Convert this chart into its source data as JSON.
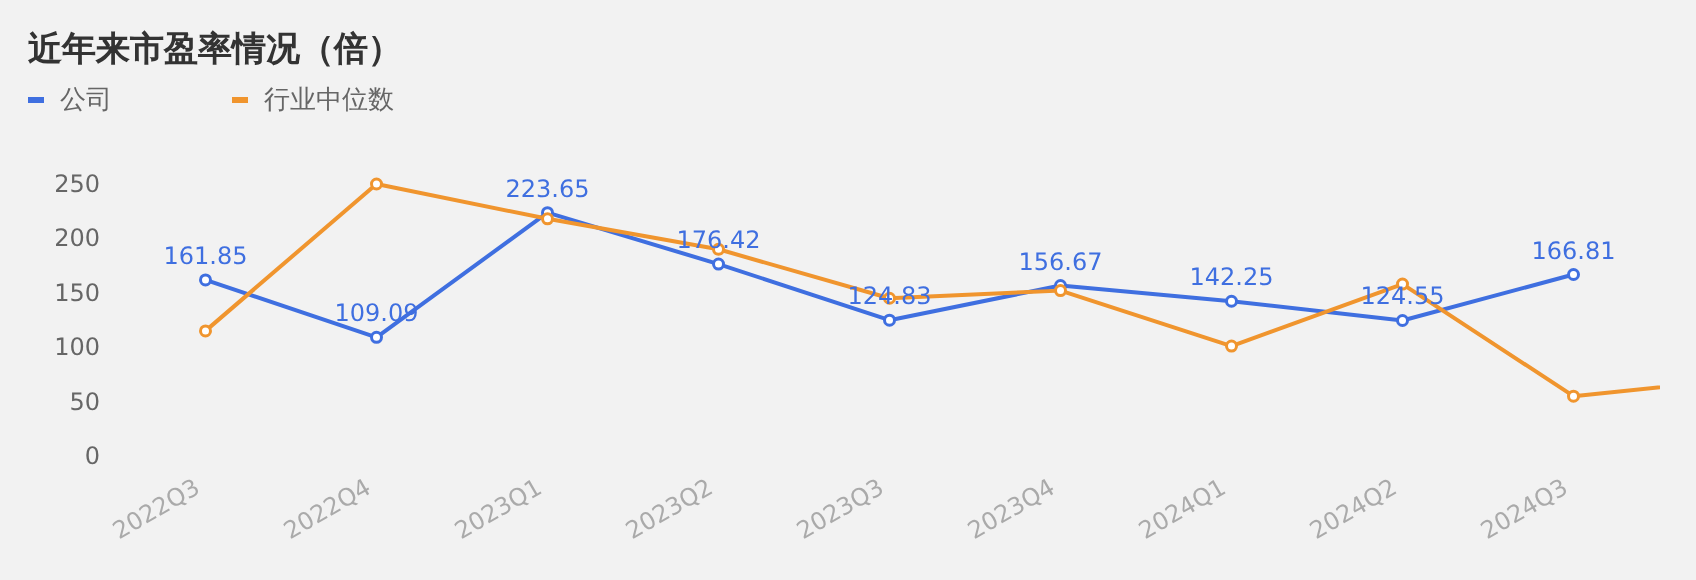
{
  "chart_data": {
    "type": "line",
    "title": "近年来市盈率情况（倍）",
    "legend": "top left",
    "marker": "circle",
    "line_style": "solid",
    "categories": [
      "2022Q3",
      "2022Q4",
      "2023Q1",
      "2023Q2",
      "2023Q3",
      "2023Q4",
      "2024Q1",
      "2024Q2",
      "2024Q3",
      null
    ],
    "ylim": [
      0,
      250
    ],
    "yticks": [
      0,
      50,
      100,
      150,
      200,
      250
    ],
    "series": [
      {
        "name": "公司",
        "color": "#3f6fe0",
        "values": [
          161.85,
          109.09,
          223.65,
          176.42,
          124.83,
          156.67,
          142.25,
          124.55,
          166.81,
          null
        ],
        "value_labels": [
          "161.85",
          "109.09",
          "223.65",
          "176.42",
          "124.83",
          "156.67",
          "142.25",
          "124.55",
          "166.81",
          null
        ]
      },
      {
        "name": "行业中位数",
        "color": "#f0952e",
        "values": [
          115,
          250,
          218,
          190,
          145,
          152,
          101,
          158,
          55,
          71
        ]
      }
    ]
  }
}
